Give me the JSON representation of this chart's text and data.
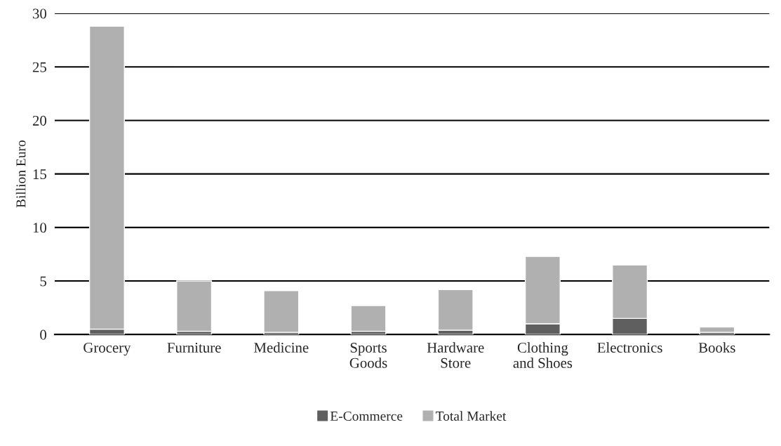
{
  "chart_data": {
    "type": "bar",
    "stacked": true,
    "ylabel": "Billion Euro",
    "categories": [
      "Grocery",
      "Furniture",
      "Medicine",
      "Sports\nGoods",
      "Hardware\nStore",
      "Clothing\nand Shoes",
      "Electronics",
      "Books"
    ],
    "series": [
      {
        "name": "E-Commerce",
        "color": "#5f5f5f",
        "values": [
          0.5,
          0.3,
          0.2,
          0.3,
          0.4,
          1.0,
          1.5,
          0.2
        ]
      },
      {
        "name": "Total Market",
        "color": "#b0b0b0",
        "values": [
          28.3,
          4.7,
          3.9,
          2.4,
          3.8,
          6.3,
          5.0,
          0.5
        ]
      }
    ],
    "ylim": [
      0,
      30
    ],
    "yticks": [
      0,
      5,
      10,
      15,
      20,
      25,
      30
    ],
    "grid": "y",
    "legend": "bottom"
  }
}
